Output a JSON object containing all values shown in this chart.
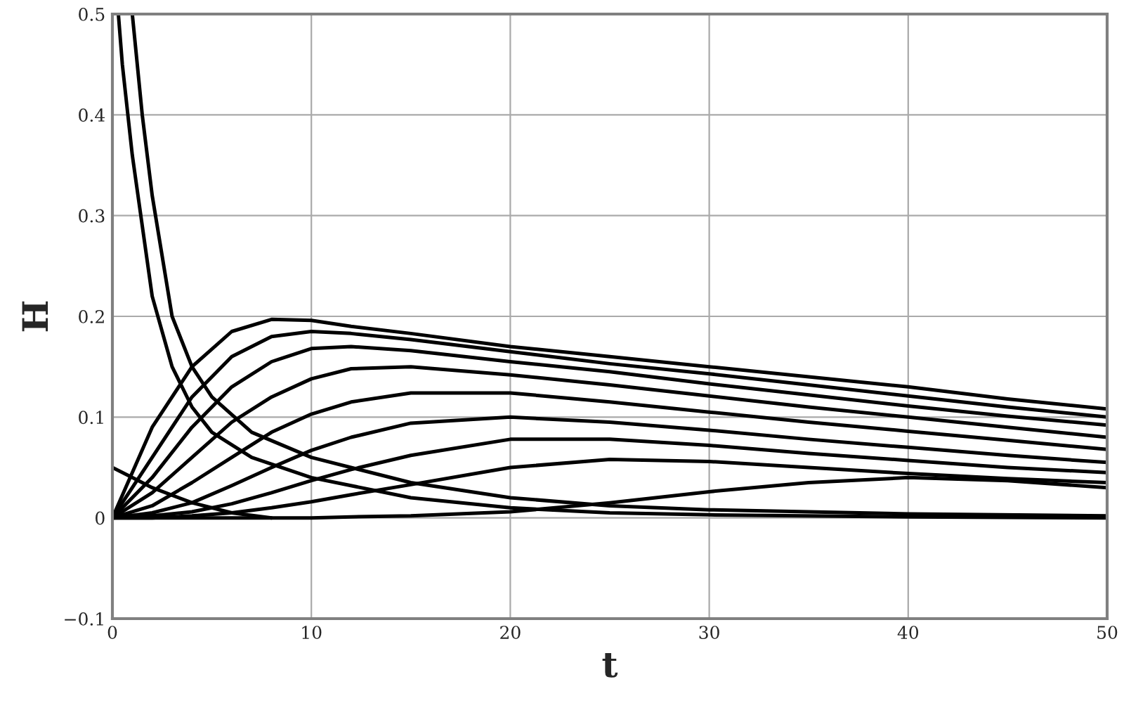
{
  "chart_data": {
    "type": "line",
    "xlabel": "t",
    "ylabel": "H",
    "xlim": [
      0,
      50
    ],
    "xticks": [
      0,
      10,
      20,
      30,
      40,
      50
    ],
    "ylim": [
      -0.1,
      0.5
    ],
    "yticks": [
      {
        "value": -0.1,
        "label": "−0.1"
      },
      0,
      0.1,
      0.2,
      0.3,
      0.4,
      0.5
    ],
    "grid": true,
    "marker": "none",
    "line_style": "solid",
    "x": [
      0,
      2,
      4,
      6,
      8,
      10,
      12,
      15,
      20,
      25,
      30,
      35,
      40,
      45,
      50
    ],
    "series": [
      {
        "color": "#000000",
        "values": [
          0,
          0.09,
          0.15,
          0.185,
          0.197,
          0.196,
          0.19,
          0.183,
          0.17,
          0.16,
          0.15,
          0.14,
          0.13,
          0.118,
          0.108
        ]
      },
      {
        "color": "#000000",
        "values": [
          0,
          0.06,
          0.12,
          0.16,
          0.18,
          0.185,
          0.183,
          0.177,
          0.165,
          0.153,
          0.143,
          0.132,
          0.121,
          0.11,
          0.1
        ]
      },
      {
        "color": "#000000",
        "values": [
          0,
          0.04,
          0.09,
          0.13,
          0.155,
          0.168,
          0.17,
          0.166,
          0.155,
          0.145,
          0.133,
          0.122,
          0.111,
          0.101,
          0.092
        ]
      },
      {
        "color": "#000000",
        "values": [
          0,
          0.025,
          0.06,
          0.095,
          0.12,
          0.138,
          0.148,
          0.15,
          0.142,
          0.132,
          0.121,
          0.11,
          0.1,
          0.09,
          0.08
        ]
      },
      {
        "color": "#000000",
        "values": [
          0,
          0.012,
          0.035,
          0.06,
          0.085,
          0.103,
          0.115,
          0.124,
          0.124,
          0.115,
          0.105,
          0.095,
          0.086,
          0.077,
          0.068
        ]
      },
      {
        "color": "#000000",
        "values": [
          0,
          0.005,
          0.015,
          0.032,
          0.05,
          0.067,
          0.08,
          0.094,
          0.1,
          0.095,
          0.087,
          0.078,
          0.07,
          0.062,
          0.055
        ]
      },
      {
        "color": "#000000",
        "values": [
          0,
          0.002,
          0.006,
          0.014,
          0.025,
          0.037,
          0.048,
          0.062,
          0.078,
          0.078,
          0.072,
          0.064,
          0.057,
          0.05,
          0.045
        ]
      },
      {
        "color": "#000000",
        "values": [
          0,
          0,
          0.002,
          0.005,
          0.01,
          0.016,
          0.023,
          0.033,
          0.05,
          0.058,
          0.056,
          0.05,
          0.044,
          0.039,
          0.035
        ]
      },
      {
        "color": "#000000",
        "values": [
          0,
          0,
          0,
          0,
          0,
          0,
          0.001,
          0.002,
          0.006,
          0.015,
          0.026,
          0.035,
          0.04,
          0.037,
          0.03
        ]
      },
      {
        "color": "#000000",
        "x": [
          0.3,
          0.5,
          1,
          2,
          3,
          4,
          5,
          7,
          10,
          15,
          20,
          25,
          30,
          40,
          50
        ],
        "values": [
          0.5,
          0.45,
          0.36,
          0.22,
          0.15,
          0.11,
          0.085,
          0.06,
          0.04,
          0.02,
          0.01,
          0.005,
          0.003,
          0.001,
          0
        ]
      },
      {
        "color": "#000000",
        "x": [
          1,
          1.5,
          2,
          3,
          4,
          5,
          7,
          10,
          15,
          20,
          25,
          30,
          40,
          50
        ],
        "values": [
          0.5,
          0.4,
          0.32,
          0.2,
          0.15,
          0.12,
          0.085,
          0.06,
          0.035,
          0.02,
          0.012,
          0.008,
          0.004,
          0.002
        ]
      },
      {
        "color": "#000000",
        "x": [
          0,
          1,
          2,
          4,
          6,
          8
        ],
        "values": [
          0.05,
          0.04,
          0.03,
          0.015,
          0.005,
          0
        ]
      }
    ]
  }
}
